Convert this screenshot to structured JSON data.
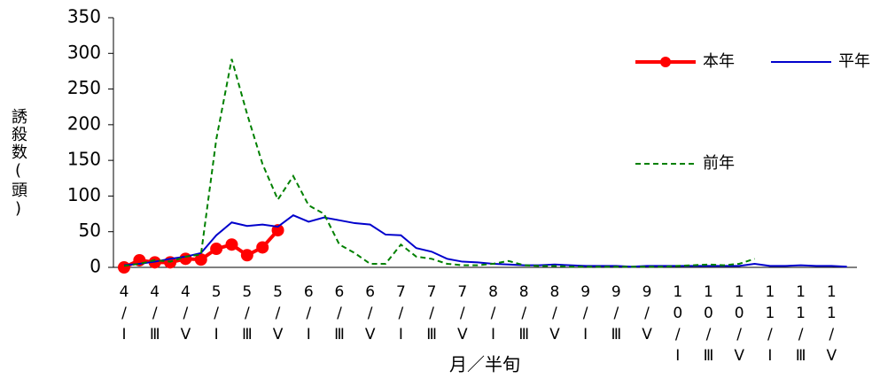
{
  "chart_data": {
    "type": "line",
    "y_label": "誘殺数(頭)",
    "x_label": "月／半旬",
    "categories": [
      "4/Ⅰ",
      null,
      "4/Ⅲ",
      null,
      "4/Ⅴ",
      null,
      "5/Ⅰ",
      null,
      "5/Ⅲ",
      null,
      "5/Ⅴ",
      null,
      "6/Ⅰ",
      null,
      "6/Ⅲ",
      null,
      "6/Ⅴ",
      null,
      "7/Ⅰ",
      null,
      "7/Ⅲ",
      null,
      "7/Ⅴ",
      null,
      "8/Ⅰ",
      null,
      "8/Ⅲ",
      null,
      "8/Ⅴ",
      null,
      "9/Ⅰ",
      null,
      "9/Ⅲ",
      null,
      "9/Ⅴ",
      null,
      "10/Ⅰ",
      null,
      "10/Ⅲ",
      null,
      "10/Ⅴ",
      null,
      "11/Ⅰ",
      null,
      "11/Ⅲ",
      null,
      "11/Ⅴ",
      null
    ],
    "series": [
      {
        "name": "本年",
        "color": "#ff0000",
        "style": "solid-marker",
        "values": [
          0,
          10,
          7,
          7,
          12,
          11,
          26,
          32,
          17,
          28,
          52,
          null,
          null,
          null,
          null,
          null,
          null,
          null,
          null,
          null,
          null,
          null,
          null,
          null,
          null,
          null,
          null,
          null,
          null,
          null,
          null,
          null,
          null,
          null,
          null,
          null,
          null,
          null,
          null,
          null,
          null,
          null,
          null,
          null,
          null,
          null,
          null,
          null
        ]
      },
      {
        "name": "平年",
        "color": "#0000cc",
        "style": "solid",
        "values": [
          3,
          5,
          8,
          12,
          15,
          20,
          45,
          63,
          58,
          60,
          57,
          73,
          64,
          70,
          66,
          62,
          60,
          46,
          45,
          27,
          22,
          12,
          8,
          7,
          5,
          4,
          3,
          3,
          4,
          3,
          2,
          2,
          2,
          1,
          2,
          2,
          2,
          2,
          2,
          2,
          2,
          5,
          2,
          2,
          3,
          2,
          2,
          1
        ]
      },
      {
        "name": "前年",
        "color": "#008000",
        "style": "dashed",
        "values": [
          2,
          5,
          10,
          8,
          15,
          18,
          180,
          292,
          215,
          145,
          95,
          128,
          87,
          75,
          32,
          20,
          5,
          5,
          32,
          15,
          12,
          5,
          3,
          3,
          5,
          9,
          3,
          2,
          2,
          1,
          1,
          1,
          1,
          1,
          1,
          1,
          2,
          3,
          4,
          3,
          5,
          12,
          null,
          null,
          null,
          null,
          null,
          null
        ]
      }
    ],
    "ylim": [
      0,
      350
    ],
    "yticks": [
      0,
      50,
      100,
      150,
      200,
      250,
      300,
      350
    ],
    "grid": false,
    "legend": "right"
  }
}
